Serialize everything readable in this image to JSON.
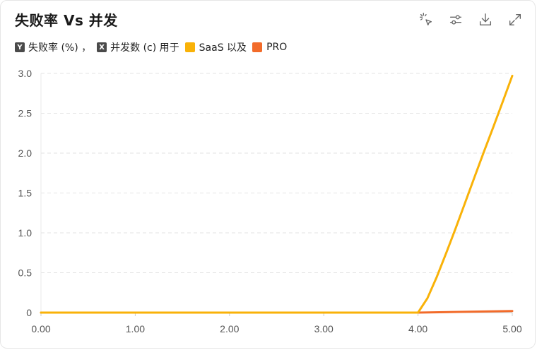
{
  "header": {
    "title": "失败率 Vs 并发"
  },
  "toolbar": {
    "icons": [
      "select-cursor-icon",
      "sliders-icon",
      "download-icon",
      "expand-icon"
    ]
  },
  "legend": {
    "y_badge": "Y",
    "y_text": "失败率 (%) ，",
    "x_badge": "X",
    "x_text": "并发数 (c) 用于",
    "series_1": "SaaS 以及",
    "series_2": "PRO"
  },
  "colors": {
    "series_1": "#F9B208",
    "series_2": "#F26B2A",
    "grid": "#E3E3E3",
    "axis": "#CCCCCC"
  },
  "chart_data": {
    "type": "line",
    "title": "失败率 Vs 并发",
    "xlabel": "",
    "ylabel": "",
    "xlim": [
      0,
      5
    ],
    "ylim": [
      0,
      3
    ],
    "x_ticks": [
      "0.00",
      "1.00",
      "2.00",
      "3.00",
      "4.00",
      "5.00"
    ],
    "y_ticks": [
      "0",
      "0.5",
      "1.0",
      "1.5",
      "2.0",
      "2.5",
      "3.0"
    ],
    "grid": "horizontal-dashed",
    "series": [
      {
        "name": "SaaS",
        "x": [
          0,
          1,
          2,
          3,
          4,
          4.1,
          4.2,
          4.3,
          4.4,
          4.5,
          4.6,
          4.7,
          4.8,
          4.9,
          5.0
        ],
        "y": [
          0,
          0,
          0,
          0,
          0,
          0.18,
          0.45,
          0.75,
          1.06,
          1.38,
          1.7,
          2.02,
          2.33,
          2.65,
          2.97
        ]
      },
      {
        "name": "PRO",
        "x": [
          0,
          1,
          2,
          3,
          4,
          5
        ],
        "y": [
          0,
          0,
          0,
          0,
          0,
          0.02
        ]
      }
    ]
  }
}
